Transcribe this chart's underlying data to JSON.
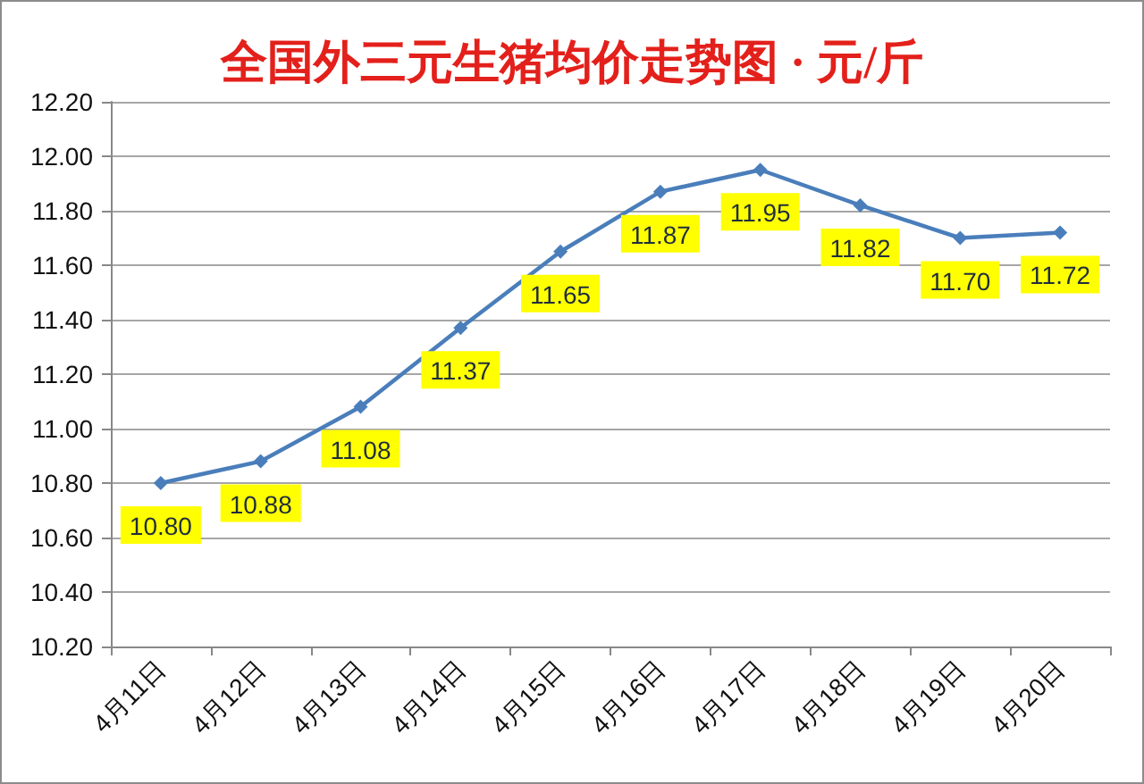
{
  "chart_data": {
    "type": "line",
    "title": "全国外三元生猪均价走势图 · 元/斤",
    "categories": [
      "4月11日",
      "4月12日",
      "4月13日",
      "4月14日",
      "4月15日",
      "4月16日",
      "4月17日",
      "4月18日",
      "4月19日",
      "4月20日"
    ],
    "values": [
      10.8,
      10.88,
      11.08,
      11.37,
      11.65,
      11.87,
      11.95,
      11.82,
      11.7,
      11.72
    ],
    "value_labels": [
      "10.80",
      "10.88",
      "11.08",
      "11.37",
      "11.65",
      "11.87",
      "11.95",
      "11.82",
      "11.70",
      "11.72"
    ],
    "color": "#4a7ebb",
    "ylim": [
      10.2,
      12.2
    ],
    "yticks": [
      {
        "value": 10.2,
        "label": "10.20"
      },
      {
        "value": 10.4,
        "label": "10.40"
      },
      {
        "value": 10.6,
        "label": "10.60"
      },
      {
        "value": 10.8,
        "label": "10.80"
      },
      {
        "value": 11.0,
        "label": "11.00"
      },
      {
        "value": 11.2,
        "label": "11.20"
      },
      {
        "value": 11.4,
        "label": "11.40"
      },
      {
        "value": 11.6,
        "label": "11.60"
      },
      {
        "value": 11.8,
        "label": "11.80"
      },
      {
        "value": 12.0,
        "label": "12.00"
      },
      {
        "value": 12.2,
        "label": "12.20"
      }
    ],
    "grid": "y",
    "marker": "diamond",
    "line_style": "solid"
  }
}
